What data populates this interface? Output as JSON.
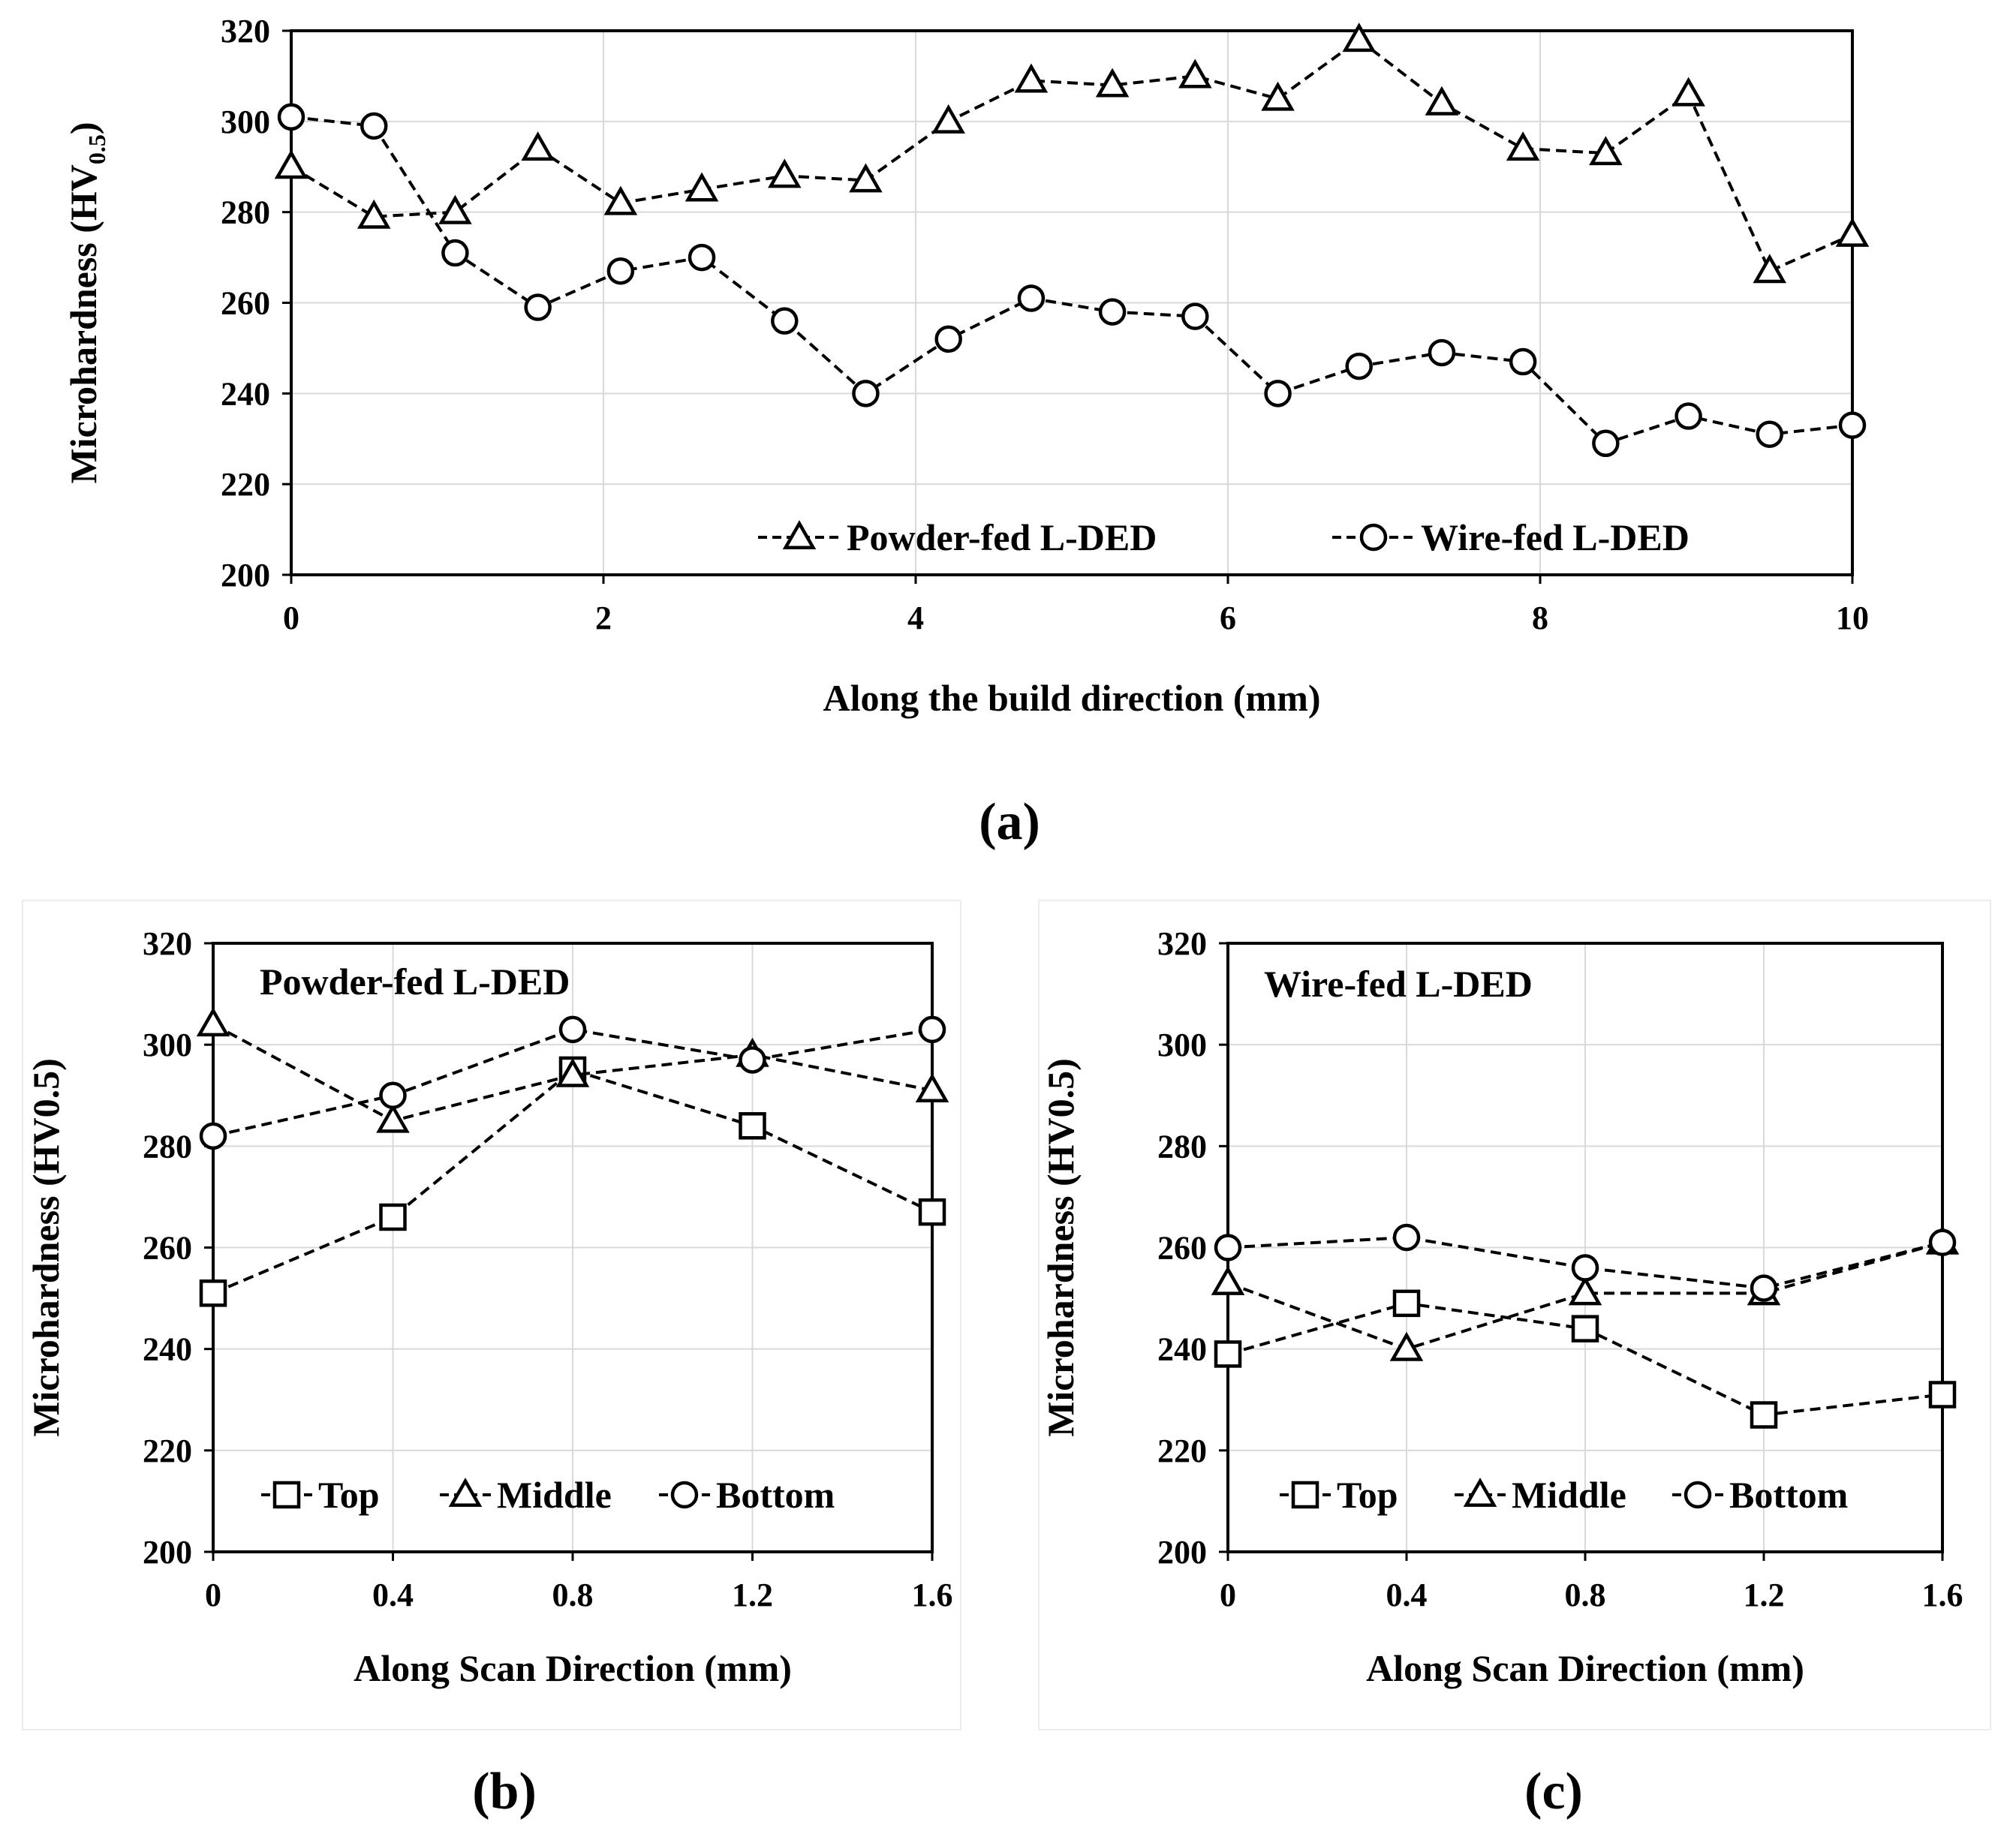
{
  "chart_data": [
    {
      "id": "a",
      "type": "line",
      "panel_label": "(a)",
      "title": "",
      "xlabel": "Along the build direction (mm)",
      "ylabel_main": "Microhardness (HV",
      "ylabel_sub": "0.5",
      "ylabel_close": ")",
      "xlim": [
        0,
        10
      ],
      "ylim": [
        200,
        320
      ],
      "xticks": [
        0,
        2,
        4,
        6,
        8,
        10
      ],
      "yticks": [
        200,
        220,
        240,
        260,
        280,
        300,
        320
      ],
      "grid": true,
      "legend_placement": "bottom-right",
      "series": [
        {
          "name": "Powder-fed L-DED",
          "marker": "triangle",
          "x": [
            0,
            0.53,
            1.05,
            1.58,
            2.11,
            2.63,
            3.16,
            3.68,
            4.21,
            4.74,
            5.26,
            5.79,
            6.32,
            6.84,
            7.37,
            7.89,
            8.42,
            8.95,
            9.47,
            10
          ],
          "y": [
            290,
            279,
            280,
            294,
            282,
            285,
            288,
            287,
            300,
            309,
            308,
            310,
            305,
            318,
            304,
            294,
            293,
            306,
            267,
            275
          ]
        },
        {
          "name": "Wire-fed L-DED",
          "marker": "circle",
          "x": [
            0,
            0.53,
            1.05,
            1.58,
            2.11,
            2.63,
            3.16,
            3.68,
            4.21,
            4.74,
            5.26,
            5.79,
            6.32,
            6.84,
            7.37,
            7.89,
            8.42,
            8.95,
            9.47,
            10
          ],
          "y": [
            301,
            299,
            271,
            259,
            267,
            270,
            256,
            240,
            252,
            261,
            258,
            257,
            240,
            246,
            249,
            247,
            229,
            235,
            231,
            233
          ]
        }
      ]
    },
    {
      "id": "b",
      "type": "line",
      "panel_label": "(b)",
      "title": "Powder-fed L-DED",
      "xlabel": "Along Scan Direction (mm)",
      "ylabel": "Microhardness (HV0.5)",
      "xlim": [
        0,
        1.6
      ],
      "ylim": [
        200,
        320
      ],
      "xticks": [
        "0",
        "0.4",
        "0.8",
        "1.2",
        "1.6"
      ],
      "yticks": [
        200,
        220,
        240,
        260,
        280,
        300,
        320
      ],
      "grid": true,
      "legend_placement": "bottom",
      "series": [
        {
          "name": "Top",
          "marker": "square",
          "x": [
            0,
            0.4,
            0.8,
            1.2,
            1.6
          ],
          "y": [
            251,
            266,
            295,
            284,
            267
          ]
        },
        {
          "name": "Middle",
          "marker": "triangle",
          "x": [
            0,
            0.4,
            0.8,
            1.2,
            1.6
          ],
          "y": [
            304,
            285,
            294,
            298,
            291
          ]
        },
        {
          "name": "Bottom",
          "marker": "circle",
          "x": [
            0,
            0.4,
            0.8,
            1.2,
            1.6
          ],
          "y": [
            282,
            290,
            303,
            297,
            303
          ]
        }
      ]
    },
    {
      "id": "c",
      "type": "line",
      "panel_label": "(c)",
      "title": "Wire-fed L-DED",
      "xlabel": "Along Scan Direction (mm)",
      "ylabel": "Microhardness (HV0.5)",
      "xlim": [
        0,
        1.6
      ],
      "ylim": [
        200,
        320
      ],
      "xticks": [
        "0",
        "0.4",
        "0.8",
        "1.2",
        "1.6"
      ],
      "yticks": [
        200,
        220,
        240,
        260,
        280,
        300,
        320
      ],
      "grid": true,
      "legend_placement": "bottom",
      "series": [
        {
          "name": "Top",
          "marker": "square",
          "x": [
            0,
            0.4,
            0.8,
            1.2,
            1.6
          ],
          "y": [
            239,
            249,
            244,
            227,
            231
          ]
        },
        {
          "name": "Middle",
          "marker": "triangle",
          "x": [
            0,
            0.4,
            0.8,
            1.2,
            1.6
          ],
          "y": [
            253,
            240,
            251,
            251,
            261
          ]
        },
        {
          "name": "Bottom",
          "marker": "circle",
          "x": [
            0,
            0.4,
            0.8,
            1.2,
            1.6
          ],
          "y": [
            260,
            262,
            256,
            252,
            261
          ]
        }
      ]
    }
  ]
}
